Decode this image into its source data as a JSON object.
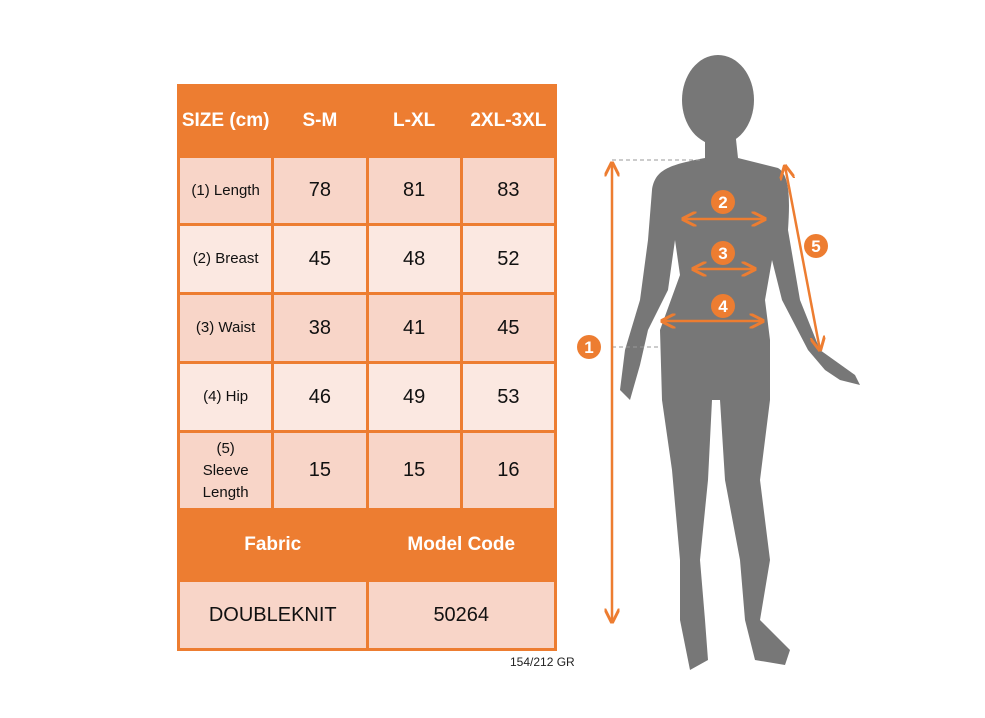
{
  "table": {
    "header": [
      "SIZE (cm)",
      "S-M",
      "L-XL",
      "2XL-3XL"
    ],
    "rows": [
      {
        "label": "(1) Length",
        "values": [
          "78",
          "81",
          "83"
        ]
      },
      {
        "label": "(2) Breast",
        "values": [
          "45",
          "48",
          "52"
        ]
      },
      {
        "label": "(3) Waist",
        "values": [
          "38",
          "41",
          "45"
        ]
      },
      {
        "label": "(4) Hip",
        "values": [
          "46",
          "49",
          "53"
        ]
      },
      {
        "label": "(5) Sleeve Length",
        "values": [
          "15",
          "15",
          "16"
        ]
      }
    ],
    "footer_headers": [
      "Fabric",
      "Model Code"
    ],
    "footer_values": [
      "DOUBLEKNIT",
      "50264"
    ]
  },
  "weight": "154/212 GR",
  "figure": {
    "markers": [
      "1",
      "2",
      "3",
      "4",
      "5"
    ],
    "colors": {
      "accent": "#ED7D31",
      "silhouette": "#777777",
      "cell_dark": "#F8D5C8",
      "cell_light": "#FBE8E1"
    }
  }
}
